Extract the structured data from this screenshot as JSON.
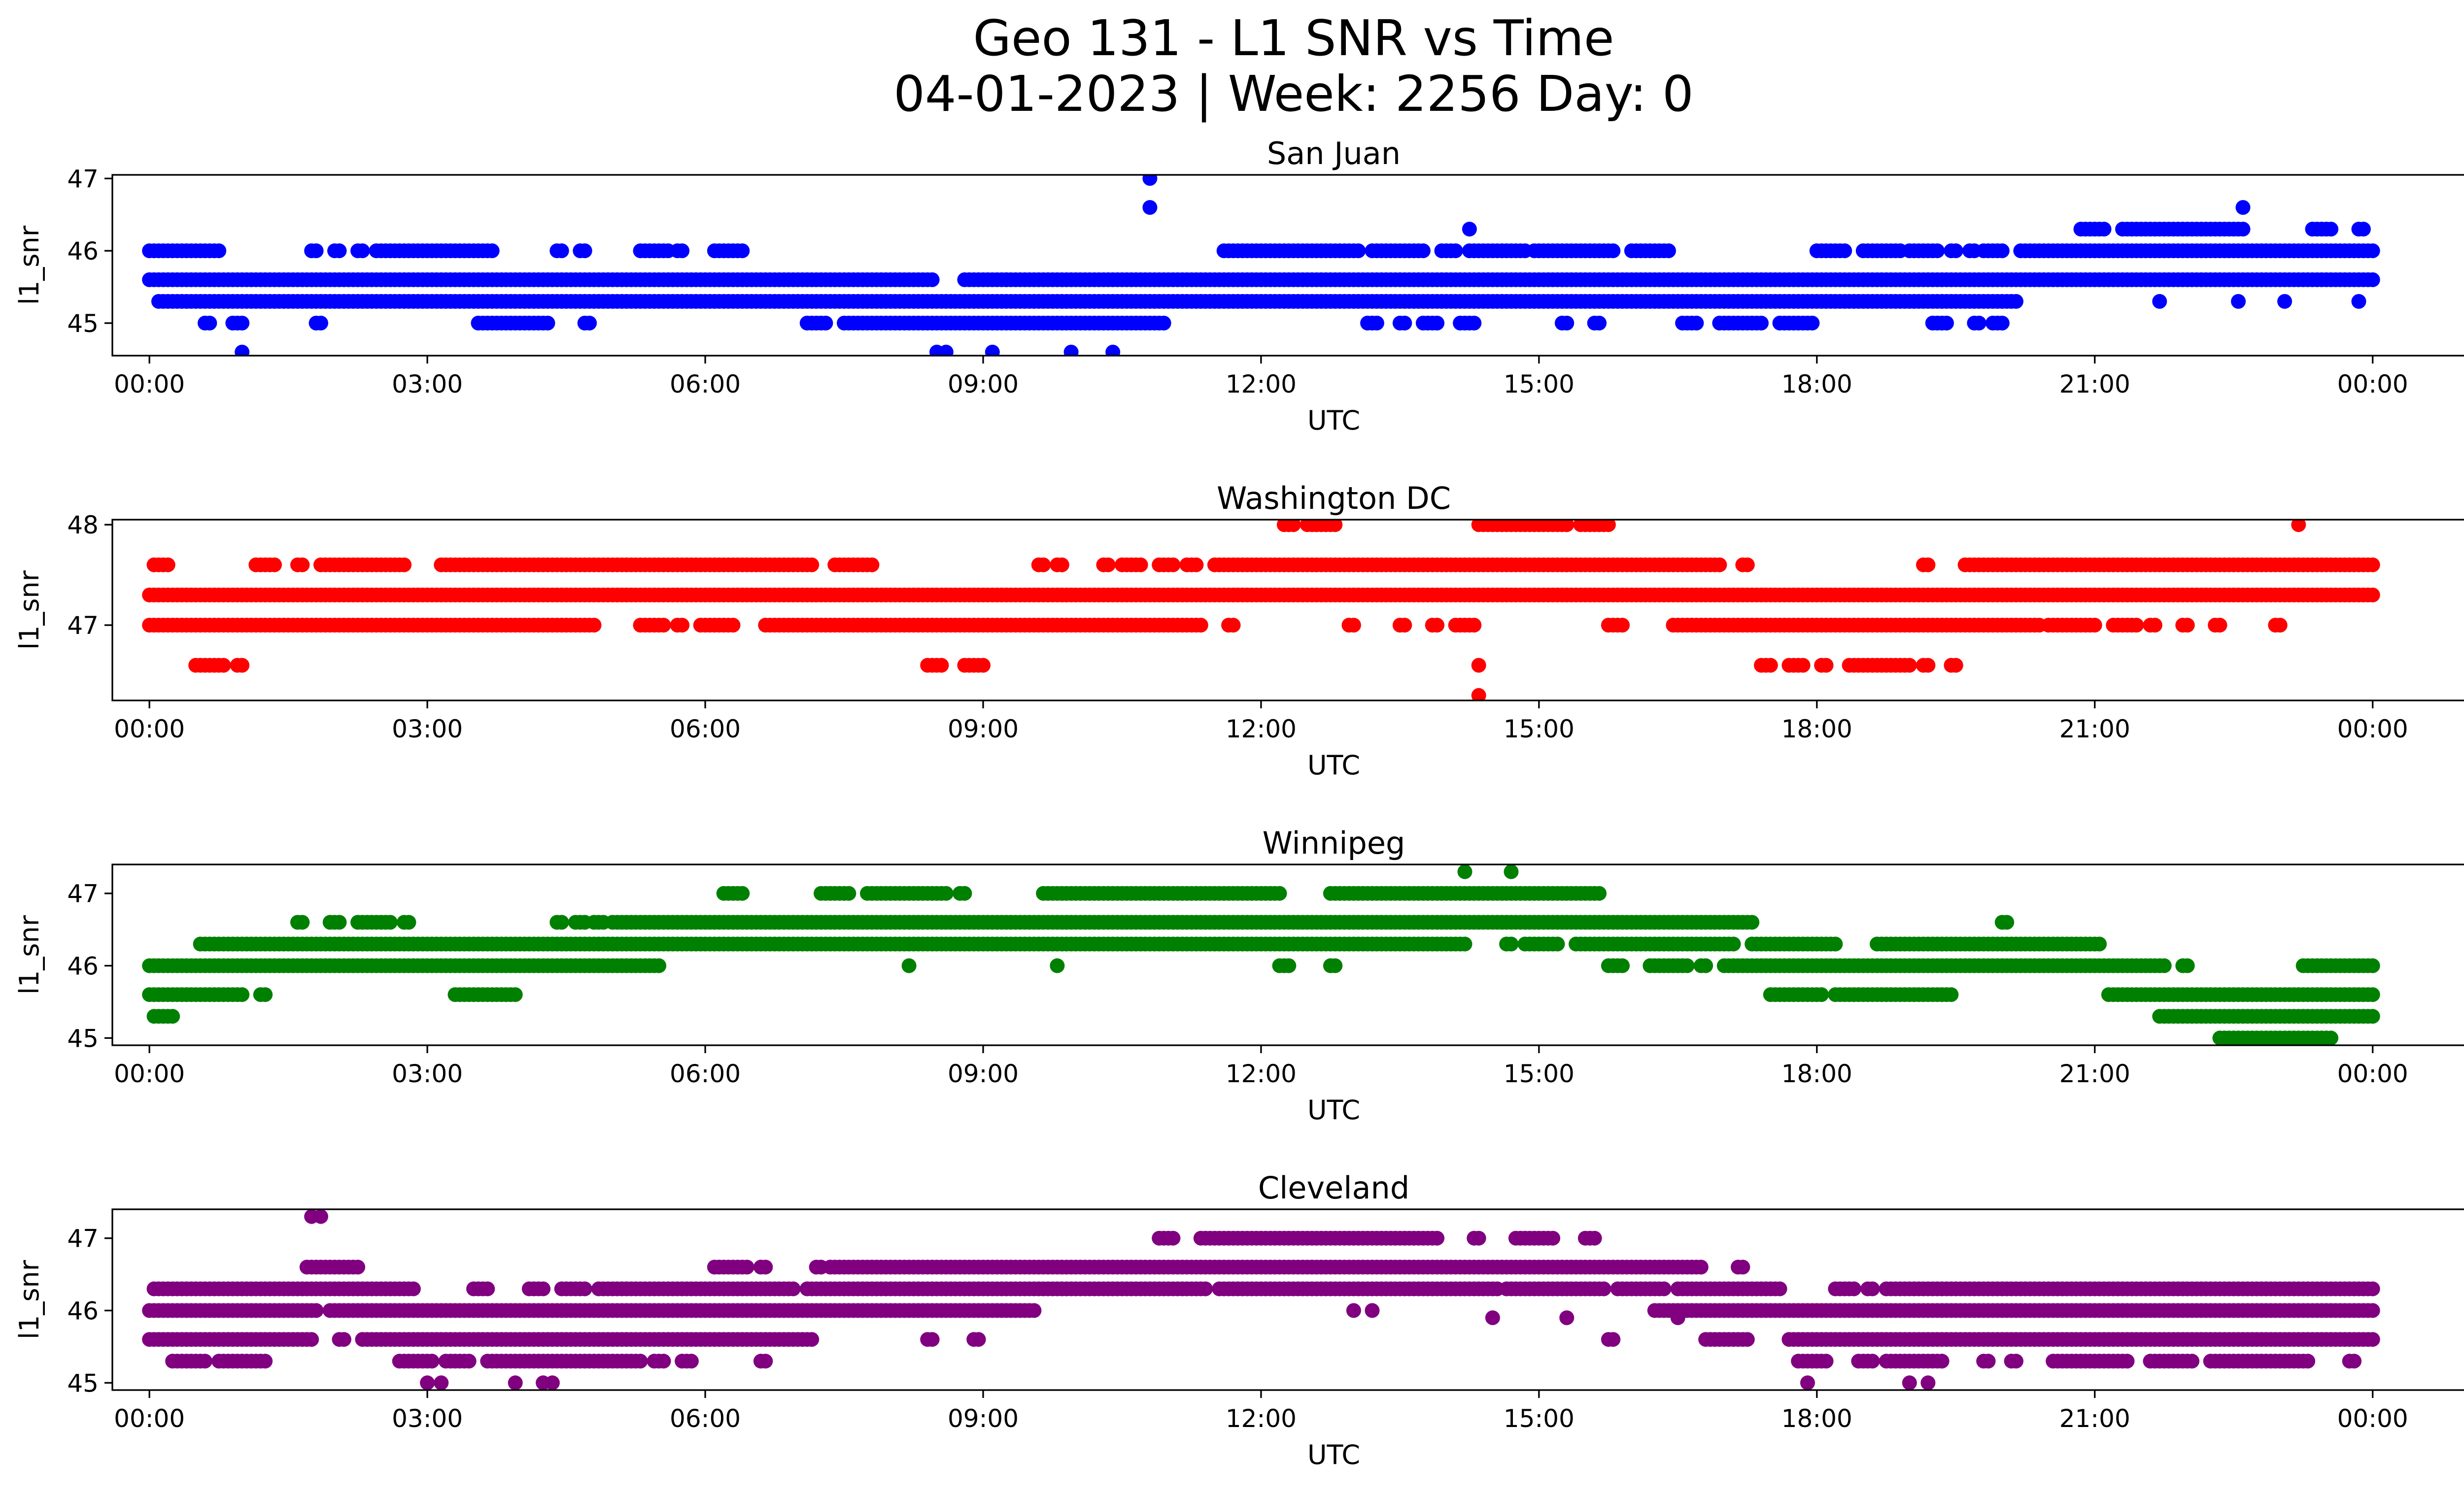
{
  "figure": {
    "title_line1": "Geo 131 - L1 SNR vs Time",
    "title_line2": "04-01-2023 | Week: 2256 Day: 0"
  },
  "chart_data": [
    {
      "type": "scatter",
      "title": "San Juan",
      "xlabel": "UTC",
      "ylabel": "l1_snr",
      "color": "#0000ff",
      "xlim": [
        -0.4,
        25.97
      ],
      "ylim": [
        44.55,
        47.05
      ],
      "xticks": [
        0,
        3,
        6,
        9,
        12,
        15,
        18,
        21,
        24
      ],
      "xtick_labels": [
        "00:00",
        "03:00",
        "06:00",
        "09:00",
        "12:00",
        "15:00",
        "18:00",
        "21:00",
        "00:00"
      ],
      "yticks": [
        45,
        46,
        47
      ],
      "ytick_labels": [
        "45",
        "46",
        "47"
      ],
      "bands": [
        {
          "y": 45.6,
          "ranges": [
            [
              0,
              8.45
            ],
            [
              8.8,
              24
            ]
          ]
        },
        {
          "y": 45.3,
          "ranges": [
            [
              0.1,
              20.15
            ]
          ]
        },
        {
          "y": 46.0,
          "ranges": [
            [
              0,
              0.75
            ],
            [
              1.75,
              1.8
            ],
            [
              2.0,
              2.05
            ],
            [
              2.25,
              2.3
            ],
            [
              2.45,
              3.7
            ],
            [
              4.4,
              4.45
            ],
            [
              4.65,
              4.7
            ],
            [
              5.3,
              5.6
            ],
            [
              5.7,
              5.75
            ],
            [
              6.1,
              6.4
            ],
            [
              11.6,
              13.05
            ],
            [
              13.2,
              13.75
            ],
            [
              13.95,
              14.1
            ],
            [
              14.25,
              14.85
            ],
            [
              14.95,
              15.8
            ],
            [
              16.0,
              16.4
            ],
            [
              18.0,
              18.3
            ],
            [
              18.5,
              18.9
            ],
            [
              19.0,
              19.3
            ],
            [
              19.45,
              19.5
            ],
            [
              19.65,
              19.7
            ],
            [
              19.8,
              20.0
            ],
            [
              20.2,
              24
            ]
          ]
        },
        {
          "y": 45.0,
          "ranges": [
            [
              0.6,
              0.65
            ],
            [
              0.9,
              1.0
            ],
            [
              1.8,
              1.85
            ],
            [
              3.55,
              4.3
            ],
            [
              4.7,
              4.75
            ],
            [
              7.1,
              7.3
            ],
            [
              7.5,
              10.95
            ],
            [
              13.15,
              13.25
            ],
            [
              13.5,
              13.55
            ],
            [
              13.75,
              13.9
            ],
            [
              14.15,
              14.3
            ],
            [
              15.25,
              15.3
            ],
            [
              15.6,
              15.65
            ],
            [
              16.55,
              16.7
            ],
            [
              16.95,
              17.4
            ],
            [
              17.6,
              17.95
            ],
            [
              19.25,
              19.4
            ],
            [
              19.7,
              19.75
            ],
            [
              19.9,
              20.0
            ]
          ]
        },
        {
          "y": 46.3,
          "ranges": [
            [
              20.85,
              21.1
            ],
            [
              21.3,
              22.45
            ],
            [
              22.5,
              22.6
            ],
            [
              23.35,
              23.55
            ],
            [
              23.85,
              23.9
            ]
          ]
        }
      ],
      "points": [
        [
          1.0,
          44.6
        ],
        [
          8.5,
          44.6
        ],
        [
          8.6,
          44.6
        ],
        [
          9.1,
          44.6
        ],
        [
          9.95,
          44.6
        ],
        [
          10.4,
          44.6
        ],
        [
          9.25,
          45.6
        ],
        [
          10.8,
          47.0
        ],
        [
          10.8,
          46.6
        ],
        [
          14.25,
          46.3
        ],
        [
          22.6,
          46.6
        ],
        [
          21.7,
          45.3
        ],
        [
          22.55,
          45.3
        ],
        [
          23.05,
          45.3
        ],
        [
          23.85,
          45.3
        ]
      ]
    },
    {
      "type": "scatter",
      "title": "Washington DC",
      "xlabel": "UTC",
      "ylabel": "l1_snr",
      "color": "#ff0000",
      "xlim": [
        -0.4,
        25.97
      ],
      "ylim": [
        46.25,
        48.05
      ],
      "xticks": [
        0,
        3,
        6,
        9,
        12,
        15,
        18,
        21,
        24
      ],
      "xtick_labels": [
        "00:00",
        "03:00",
        "06:00",
        "09:00",
        "12:00",
        "15:00",
        "18:00",
        "21:00",
        "00:00"
      ],
      "yticks": [
        47,
        48
      ],
      "ytick_labels": [
        "47",
        "48"
      ],
      "bands": [
        {
          "y": 47.3,
          "ranges": [
            [
              0,
              24
            ]
          ]
        },
        {
          "y": 47.0,
          "ranges": [
            [
              0,
              4.8
            ],
            [
              5.3,
              5.55
            ],
            [
              5.7,
              5.75
            ],
            [
              5.95,
              6.3
            ],
            [
              6.65,
              11.35
            ],
            [
              11.65,
              11.7
            ],
            [
              12.95,
              13.0
            ],
            [
              13.5,
              13.55
            ],
            [
              13.85,
              13.9
            ],
            [
              14.1,
              14.3
            ],
            [
              15.75,
              15.9
            ],
            [
              16.45,
              20.4
            ],
            [
              20.5,
              21.0
            ],
            [
              21.2,
              21.45
            ],
            [
              21.6,
              21.65
            ],
            [
              21.95,
              22.0
            ],
            [
              22.3,
              22.35
            ],
            [
              22.95,
              23.0
            ]
          ]
        },
        {
          "y": 47.6,
          "ranges": [
            [
              0.05,
              0.2
            ],
            [
              1.15,
              1.35
            ],
            [
              1.6,
              1.65
            ],
            [
              1.85,
              2.75
            ],
            [
              3.15,
              7.15
            ],
            [
              7.4,
              7.8
            ],
            [
              9.6,
              9.65
            ],
            [
              9.8,
              9.85
            ],
            [
              10.3,
              10.35
            ],
            [
              10.5,
              10.7
            ],
            [
              10.9,
              11.05
            ],
            [
              11.2,
              11.3
            ],
            [
              11.5,
              16.95
            ],
            [
              17.2,
              17.25
            ],
            [
              19.15,
              19.2
            ],
            [
              19.6,
              24
            ]
          ]
        },
        {
          "y": 46.6,
          "ranges": [
            [
              0.5,
              0.8
            ],
            [
              0.95,
              1.0
            ],
            [
              8.4,
              8.55
            ],
            [
              8.8,
              9.0
            ],
            [
              17.4,
              17.5
            ],
            [
              17.7,
              17.85
            ],
            [
              18.05,
              18.1
            ],
            [
              18.35,
              19.0
            ],
            [
              19.15,
              19.2
            ],
            [
              19.45,
              19.5
            ]
          ]
        },
        {
          "y": 48.0,
          "ranges": [
            [
              12.25,
              12.35
            ],
            [
              12.5,
              12.8
            ],
            [
              14.35,
              15.3
            ],
            [
              15.45,
              15.75
            ]
          ]
        }
      ],
      "points": [
        [
          14.35,
          46.6
        ],
        [
          14.35,
          46.3
        ],
        [
          23.2,
          48.0
        ]
      ]
    },
    {
      "type": "scatter",
      "title": "Winnipeg",
      "xlabel": "UTC",
      "ylabel": "l1_snr",
      "color": "#008000",
      "xlim": [
        -0.4,
        25.97
      ],
      "ylim": [
        44.9,
        47.4
      ],
      "xticks": [
        0,
        3,
        6,
        9,
        12,
        15,
        18,
        21,
        24
      ],
      "xtick_labels": [
        "00:00",
        "03:00",
        "06:00",
        "09:00",
        "12:00",
        "15:00",
        "18:00",
        "21:00",
        "00:00"
      ],
      "yticks": [
        45,
        46,
        47
      ],
      "ytick_labels": [
        "45",
        "46",
        "47"
      ],
      "bands": [
        {
          "y": 46.0,
          "ranges": [
            [
              0,
              5.5
            ],
            [
              12.2,
              12.3
            ],
            [
              12.75,
              12.8
            ],
            [
              15.75,
              15.9
            ],
            [
              16.2,
              16.6
            ],
            [
              16.75,
              16.8
            ],
            [
              17.0,
              21.75
            ],
            [
              21.95,
              22.0
            ],
            [
              23.25,
              24
            ]
          ]
        },
        {
          "y": 46.3,
          "ranges": [
            [
              0.55,
              14.2
            ],
            [
              14.65,
              14.7
            ],
            [
              14.85,
              15.2
            ],
            [
              15.4,
              17.1
            ],
            [
              17.3,
              18.2
            ],
            [
              18.65,
              21.05
            ]
          ]
        },
        {
          "y": 46.6,
          "ranges": [
            [
              1.6,
              1.65
            ],
            [
              1.95,
              2.05
            ],
            [
              2.25,
              2.6
            ],
            [
              2.75,
              2.8
            ],
            [
              4.4,
              4.45
            ],
            [
              4.6,
              4.7
            ],
            [
              4.8,
              4.9
            ],
            [
              5.0,
              17.3
            ],
            [
              20.0,
              20.05
            ]
          ]
        },
        {
          "y": 45.6,
          "ranges": [
            [
              0,
              1.0
            ],
            [
              1.2,
              1.25
            ],
            [
              3.3,
              3.95
            ],
            [
              17.5,
              18.05
            ],
            [
              18.2,
              19.45
            ],
            [
              21.15,
              24
            ]
          ]
        },
        {
          "y": 47.0,
          "ranges": [
            [
              6.2,
              6.4
            ],
            [
              7.25,
              7.55
            ],
            [
              7.75,
              8.6
            ],
            [
              8.75,
              8.8
            ],
            [
              9.65,
              12.2
            ],
            [
              12.75,
              15.65
            ]
          ]
        },
        {
          "y": 45.3,
          "ranges": [
            [
              0.05,
              0.25
            ],
            [
              21.7,
              24
            ]
          ]
        },
        {
          "y": 45.0,
          "ranges": [
            [
              22.35,
              23.55
            ]
          ]
        }
      ],
      "points": [
        [
          14.2,
          47.3
        ],
        [
          14.7,
          47.3
        ],
        [
          8.2,
          46.0
        ],
        [
          9.8,
          46.0
        ]
      ]
    },
    {
      "type": "scatter",
      "title": "Cleveland",
      "xlabel": "UTC",
      "ylabel": "l1_snr",
      "color": "#800080",
      "xlim": [
        -0.4,
        25.97
      ],
      "ylim": [
        44.9,
        47.4
      ],
      "xticks": [
        0,
        3,
        6,
        9,
        12,
        15,
        18,
        21,
        24
      ],
      "xtick_labels": [
        "00:00",
        "03:00",
        "06:00",
        "09:00",
        "12:00",
        "15:00",
        "18:00",
        "21:00",
        "00:00"
      ],
      "yticks": [
        45,
        46,
        47
      ],
      "ytick_labels": [
        "45",
        "46",
        "47"
      ],
      "bands": [
        {
          "y": 46.0,
          "ranges": [
            [
              0,
              1.8
            ],
            [
              1.95,
              9.55
            ],
            [
              16.25,
              24
            ]
          ]
        },
        {
          "y": 46.3,
          "ranges": [
            [
              0.05,
              2.85
            ],
            [
              3.5,
              3.65
            ],
            [
              4.1,
              4.25
            ],
            [
              4.45,
              4.7
            ],
            [
              4.85,
              6.95
            ],
            [
              7.1,
              11.4
            ],
            [
              11.55,
              14.55
            ],
            [
              14.65,
              15.7
            ],
            [
              15.85,
              16.35
            ],
            [
              16.5,
              17.6
            ],
            [
              18.2,
              18.4
            ],
            [
              18.55,
              18.6
            ],
            [
              18.75,
              24
            ]
          ]
        },
        {
          "y": 45.6,
          "ranges": [
            [
              0,
              1.75
            ],
            [
              2.05,
              2.1
            ],
            [
              2.3,
              7.15
            ],
            [
              8.4,
              8.45
            ],
            [
              8.9,
              8.95
            ],
            [
              15.75,
              15.8
            ],
            [
              16.8,
              17.25
            ],
            [
              17.7,
              24
            ]
          ]
        },
        {
          "y": 46.6,
          "ranges": [
            [
              1.7,
              2.25
            ],
            [
              6.1,
              6.45
            ],
            [
              6.6,
              6.65
            ],
            [
              7.2,
              7.25
            ],
            [
              7.35,
              16.75
            ],
            [
              17.15,
              17.2
            ]
          ]
        },
        {
          "y": 45.3,
          "ranges": [
            [
              0.25,
              0.6
            ],
            [
              0.75,
              1.25
            ],
            [
              2.7,
              3.05
            ],
            [
              3.2,
              3.45
            ],
            [
              3.65,
              5.3
            ],
            [
              5.45,
              5.55
            ],
            [
              5.75,
              5.85
            ],
            [
              6.6,
              6.65
            ],
            [
              17.8,
              18.1
            ],
            [
              18.45,
              18.6
            ],
            [
              18.75,
              19.35
            ],
            [
              19.8,
              19.85
            ],
            [
              20.1,
              20.15
            ],
            [
              20.55,
              21.35
            ],
            [
              21.6,
              22.05
            ],
            [
              22.25,
              23.3
            ],
            [
              23.75,
              23.8
            ]
          ]
        },
        {
          "y": 47.0,
          "ranges": [
            [
              10.9,
              11.05
            ],
            [
              11.35,
              13.9
            ],
            [
              14.3,
              14.35
            ],
            [
              14.75,
              15.15
            ],
            [
              15.5,
              15.6
            ]
          ]
        }
      ],
      "points": [
        [
          1.75,
          47.3
        ],
        [
          1.85,
          47.3
        ],
        [
          3.0,
          45.0
        ],
        [
          3.15,
          45.0
        ],
        [
          3.95,
          45.0
        ],
        [
          4.25,
          45.0
        ],
        [
          4.35,
          45.0
        ],
        [
          17.9,
          45.0
        ],
        [
          19.0,
          45.0
        ],
        [
          19.2,
          45.0
        ],
        [
          14.5,
          45.9
        ],
        [
          15.3,
          45.9
        ],
        [
          16.5,
          45.9
        ],
        [
          13.0,
          46.0
        ],
        [
          13.2,
          46.0
        ]
      ]
    }
  ]
}
